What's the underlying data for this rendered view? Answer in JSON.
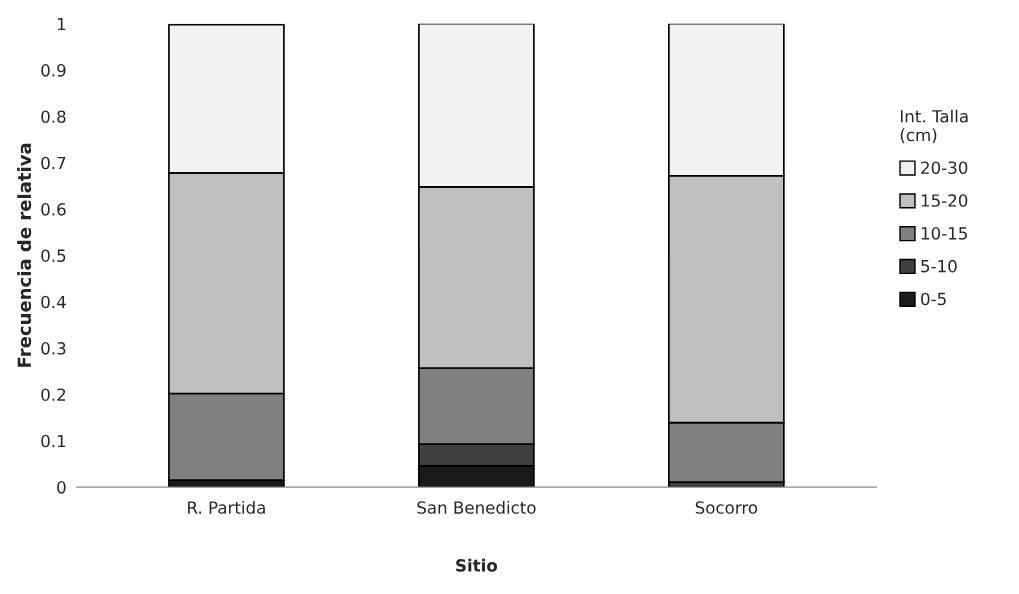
{
  "chart_data": {
    "type": "bar",
    "stacked": true,
    "xlabel": "Sitio",
    "ylabel": "Frecuencia de relativa",
    "legend_title": "Int. Talla\n(cm)",
    "legend": "right",
    "grid": false,
    "categories": [
      "R. Partida",
      "San Benedicto",
      "Socorro"
    ],
    "ylim": [
      0,
      1
    ],
    "yticks": [
      0,
      0.1,
      0.2,
      0.3,
      0.4,
      0.5,
      0.6,
      0.7,
      0.8,
      0.9,
      1
    ],
    "series": [
      {
        "name": "0-5",
        "color": "#1a1a1a",
        "values": [
          0.015,
          0.046,
          null
        ]
      },
      {
        "name": "5-10",
        "color": "#404040",
        "values": [
          null,
          0.047,
          0.011
        ]
      },
      {
        "name": "10-15",
        "color": "#808080",
        "values": [
          0.187,
          0.164,
          0.128
        ]
      },
      {
        "name": "15-20",
        "color": "#bfbfbf",
        "values": [
          0.476,
          0.391,
          0.533
        ]
      },
      {
        "name": "20-30",
        "color": "#f2f2f2",
        "values": [
          0.32,
          0.352,
          0.328
        ]
      }
    ]
  }
}
